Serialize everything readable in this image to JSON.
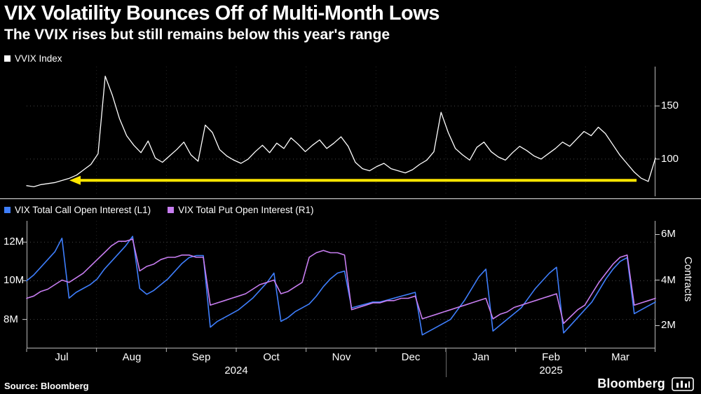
{
  "header": {
    "title": "VIX Volatility Bounces Off of Multi-Month Lows",
    "subtitle": "The VVIX rises but still remains below this year's range"
  },
  "footer": {
    "source": "Source: Bloomberg",
    "brand": "Bloomberg"
  },
  "chart_data": [
    {
      "type": "line",
      "panel": "top",
      "title": "VVIX Index",
      "x_range": [
        "Jul 2024",
        "Mar 2025"
      ],
      "ylim": [
        65,
        187
      ],
      "grid": true,
      "legend_position": "top-left",
      "yticks": [
        {
          "label": "150",
          "value": 150
        },
        {
          "label": "100",
          "value": 100
        }
      ],
      "series": [
        {
          "name": "VVIX Index",
          "color": "#ffffff",
          "values": [
            75,
            74,
            76,
            77,
            78,
            80,
            82,
            85,
            90,
            95,
            105,
            178,
            160,
            138,
            122,
            113,
            106,
            117,
            101,
            97,
            103,
            109,
            116,
            104,
            98,
            132,
            125,
            109,
            103,
            99,
            96,
            100,
            107,
            113,
            106,
            115,
            110,
            120,
            114,
            107,
            113,
            118,
            110,
            115,
            121,
            112,
            97,
            91,
            89,
            93,
            96,
            91,
            89,
            87,
            90,
            95,
            99,
            107,
            144,
            125,
            110,
            104,
            99,
            111,
            116,
            107,
            102,
            99,
            106,
            112,
            108,
            103,
            100,
            105,
            110,
            116,
            112,
            119,
            126,
            122,
            130,
            124,
            114,
            104,
            96,
            88,
            82,
            79,
            101
          ]
        }
      ],
      "annotations": [
        {
          "type": "arrow",
          "direction": "left",
          "y": 80,
          "x_from_frac": 0.97,
          "x_to_frac": 0.068,
          "color": "#ffe600"
        }
      ]
    },
    {
      "type": "line",
      "panel": "bottom",
      "categories_months": [
        "Jul",
        "Aug",
        "Sep",
        "Oct",
        "Nov",
        "Dec",
        "Jan",
        "Feb",
        "Mar"
      ],
      "years": [
        "2024",
        "2025"
      ],
      "grid": true,
      "left_ylim": [
        6.5,
        13.1
      ],
      "left_yticks": [
        {
          "label": "12M",
          "value": 12
        },
        {
          "label": "10M",
          "value": 10
        },
        {
          "label": "8M",
          "value": 8
        }
      ],
      "right_ylim": [
        1.0,
        6.6
      ],
      "right_yticks": [
        {
          "label": "6M",
          "value": 6
        },
        {
          "label": "4M",
          "value": 4
        },
        {
          "label": "2M",
          "value": 2
        }
      ],
      "right_axis_title": "Contracts",
      "series": [
        {
          "name": "VIX Total Call Open Interest (L1)",
          "axis": "left",
          "color": "#3e7efc",
          "unit": "contracts (millions)",
          "values": [
            10.0,
            10.3,
            10.7,
            11.1,
            11.5,
            12.2,
            9.1,
            9.4,
            9.6,
            9.8,
            10.1,
            10.6,
            11.0,
            11.4,
            11.8,
            12.3,
            9.6,
            9.3,
            9.5,
            9.8,
            10.1,
            10.5,
            10.9,
            11.2,
            11.3,
            11.3,
            7.6,
            7.9,
            8.1,
            8.3,
            8.5,
            8.8,
            9.1,
            9.5,
            9.9,
            10.4,
            7.9,
            8.1,
            8.4,
            8.6,
            8.8,
            9.2,
            9.7,
            10.1,
            10.4,
            10.5,
            8.6,
            8.7,
            8.8,
            8.9,
            8.9,
            9.0,
            9.1,
            9.2,
            9.3,
            9.4,
            7.2,
            7.4,
            7.6,
            7.8,
            8.0,
            8.5,
            9.0,
            9.6,
            10.2,
            10.6,
            7.4,
            7.7,
            8.0,
            8.3,
            8.6,
            9.1,
            9.6,
            10.0,
            10.4,
            10.7,
            7.3,
            7.7,
            8.1,
            8.5,
            8.9,
            9.5,
            10.1,
            10.6,
            11.0,
            11.2,
            8.3,
            8.5,
            8.7,
            8.9
          ]
        },
        {
          "name": "VIX Total Put Open Interest (R1)",
          "axis": "right",
          "color": "#c77df0",
          "unit": "contracts (millions)",
          "values": [
            3.2,
            3.3,
            3.5,
            3.6,
            3.8,
            4.0,
            3.9,
            4.1,
            4.3,
            4.6,
            4.9,
            5.2,
            5.5,
            5.7,
            5.7,
            5.8,
            4.4,
            4.6,
            4.7,
            4.9,
            5.0,
            5.0,
            5.1,
            5.1,
            5.0,
            5.0,
            2.9,
            3.0,
            3.1,
            3.2,
            3.3,
            3.4,
            3.6,
            3.8,
            3.9,
            4.0,
            3.4,
            3.5,
            3.7,
            3.9,
            5.0,
            5.2,
            5.3,
            5.2,
            5.2,
            5.1,
            2.7,
            2.8,
            2.9,
            3.0,
            3.0,
            3.1,
            3.1,
            3.2,
            3.2,
            3.3,
            2.3,
            2.4,
            2.5,
            2.6,
            2.7,
            2.8,
            2.9,
            3.0,
            3.1,
            3.2,
            2.3,
            2.5,
            2.6,
            2.8,
            2.9,
            3.0,
            3.1,
            3.2,
            3.3,
            3.4,
            2.1,
            2.4,
            2.7,
            2.9,
            3.4,
            3.9,
            4.3,
            4.7,
            5.0,
            5.1,
            2.9,
            3.0,
            3.1,
            3.2
          ]
        }
      ]
    }
  ]
}
